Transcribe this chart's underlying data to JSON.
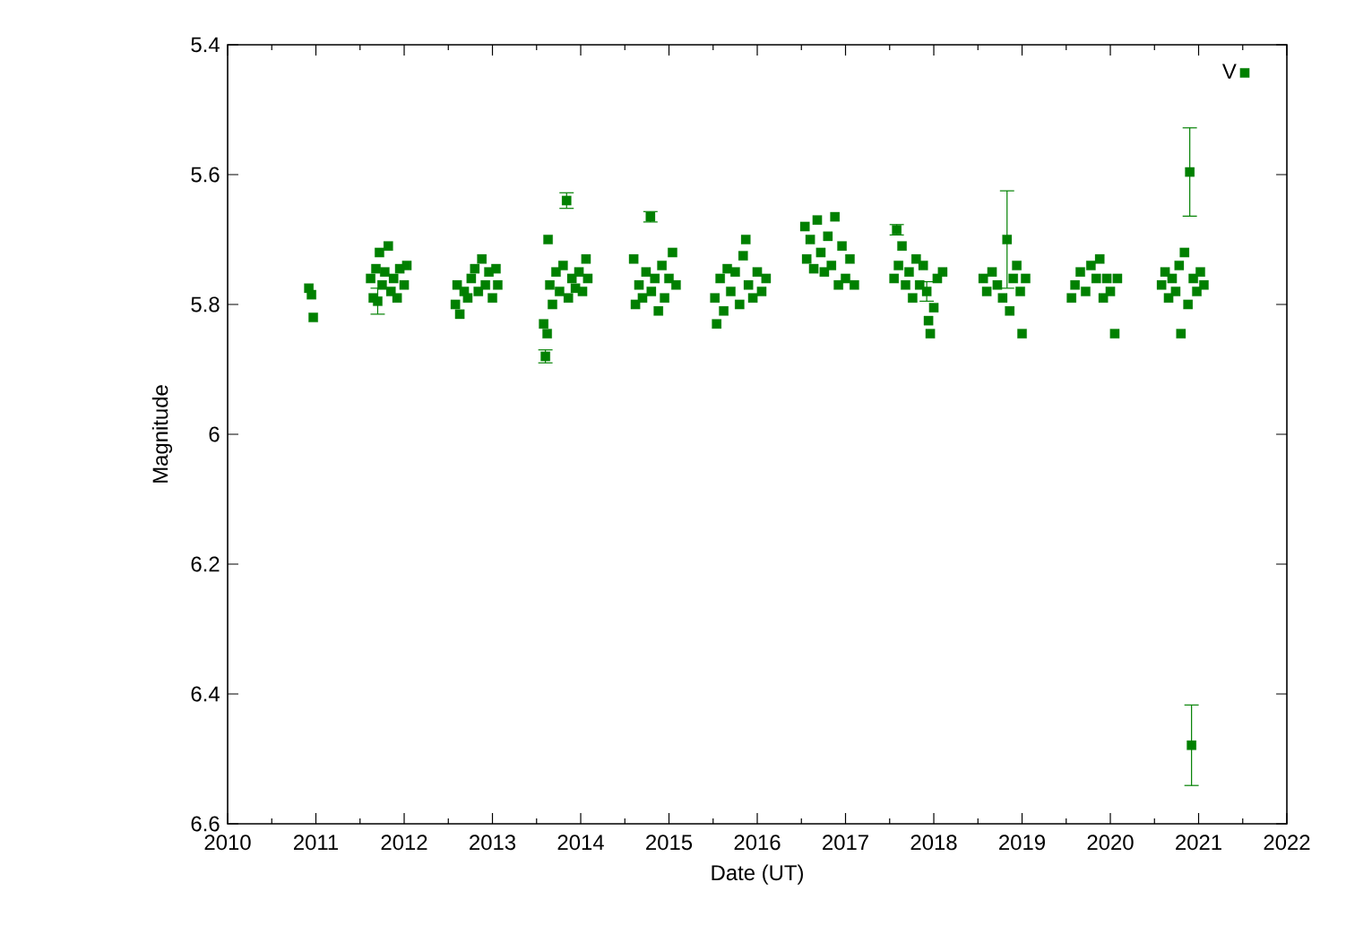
{
  "chart_data": {
    "type": "scatter",
    "xlabel": "Date (UT)",
    "ylabel": "Magnitude",
    "xlim": [
      2010,
      2022
    ],
    "xticks": [
      2010,
      2011,
      2012,
      2013,
      2014,
      2015,
      2016,
      2017,
      2018,
      2019,
      2020,
      2021,
      2022
    ],
    "ylim": [
      6.6,
      5.4
    ],
    "yticks": [
      5.4,
      5.6,
      5.8,
      6,
      6.2,
      6.4,
      6.6
    ],
    "legend": "top right",
    "marker": "square",
    "grid": false,
    "series": [
      {
        "name": "V",
        "color": "#008000",
        "x": [
          2010.92,
          2010.95,
          2010.97,
          2011.62,
          2011.65,
          2011.68,
          2011.7,
          2011.72,
          2011.75,
          2011.78,
          2011.82,
          2011.85,
          2011.88,
          2011.92,
          2011.95,
          2012.0,
          2012.03,
          2012.58,
          2012.6,
          2012.63,
          2012.68,
          2012.72,
          2012.76,
          2012.8,
          2012.84,
          2012.88,
          2012.92,
          2012.96,
          2013.0,
          2013.04,
          2013.06,
          2013.58,
          2013.6,
          2013.62,
          2013.63,
          2013.65,
          2013.68,
          2013.72,
          2013.76,
          2013.8,
          2013.84,
          2013.86,
          2013.9,
          2013.94,
          2013.98,
          2014.02,
          2014.06,
          2014.08,
          2014.6,
          2014.62,
          2014.66,
          2014.7,
          2014.74,
          2014.79,
          2014.8,
          2014.84,
          2014.88,
          2014.92,
          2014.95,
          2015.0,
          2015.04,
          2015.08,
          2015.52,
          2015.54,
          2015.58,
          2015.62,
          2015.66,
          2015.7,
          2015.75,
          2015.8,
          2015.84,
          2015.87,
          2015.9,
          2015.95,
          2016.0,
          2016.05,
          2016.1,
          2016.54,
          2016.56,
          2016.6,
          2016.64,
          2016.68,
          2016.72,
          2016.76,
          2016.8,
          2016.84,
          2016.88,
          2016.92,
          2016.96,
          2017.0,
          2017.05,
          2017.1,
          2017.55,
          2017.58,
          2017.6,
          2017.64,
          2017.68,
          2017.72,
          2017.76,
          2017.8,
          2017.84,
          2017.88,
          2017.92,
          2017.94,
          2017.96,
          2018.0,
          2018.04,
          2018.1,
          2018.56,
          2018.6,
          2018.66,
          2018.72,
          2018.78,
          2018.83,
          2018.86,
          2018.9,
          2018.94,
          2018.98,
          2019.0,
          2019.04,
          2019.56,
          2019.6,
          2019.66,
          2019.72,
          2019.78,
          2019.84,
          2019.88,
          2019.92,
          2019.96,
          2020.0,
          2020.05,
          2020.08,
          2020.58,
          2020.62,
          2020.66,
          2020.7,
          2020.74,
          2020.78,
          2020.8,
          2020.84,
          2020.88,
          2020.9,
          2020.92,
          2020.94,
          2020.98,
          2021.02,
          2021.06
        ],
        "values": [
          5.775,
          5.785,
          5.82,
          5.76,
          5.79,
          5.745,
          5.795,
          5.72,
          5.77,
          5.75,
          5.71,
          5.78,
          5.76,
          5.79,
          5.745,
          5.77,
          5.74,
          5.8,
          5.77,
          5.815,
          5.78,
          5.79,
          5.76,
          5.745,
          5.78,
          5.73,
          5.77,
          5.75,
          5.79,
          5.745,
          5.77,
          5.83,
          5.88,
          5.845,
          5.7,
          5.77,
          5.8,
          5.75,
          5.78,
          5.74,
          5.64,
          5.79,
          5.76,
          5.775,
          5.75,
          5.78,
          5.73,
          5.76,
          5.73,
          5.8,
          5.77,
          5.79,
          5.75,
          5.665,
          5.78,
          5.76,
          5.81,
          5.74,
          5.79,
          5.76,
          5.72,
          5.77,
          5.79,
          5.83,
          5.76,
          5.81,
          5.745,
          5.78,
          5.75,
          5.8,
          5.725,
          5.7,
          5.77,
          5.79,
          5.75,
          5.78,
          5.76,
          5.68,
          5.73,
          5.7,
          5.745,
          5.67,
          5.72,
          5.75,
          5.695,
          5.74,
          5.665,
          5.77,
          5.71,
          5.76,
          5.73,
          5.77,
          5.76,
          5.685,
          5.74,
          5.71,
          5.77,
          5.75,
          5.79,
          5.73,
          5.77,
          5.74,
          5.78,
          5.825,
          5.845,
          5.805,
          5.76,
          5.75,
          5.76,
          5.78,
          5.75,
          5.77,
          5.79,
          5.7,
          5.81,
          5.76,
          5.74,
          5.78,
          5.845,
          5.76,
          5.79,
          5.77,
          5.75,
          5.78,
          5.74,
          5.76,
          5.73,
          5.79,
          5.76,
          5.78,
          5.845,
          5.76,
          5.77,
          5.75,
          5.79,
          5.76,
          5.78,
          5.74,
          5.845,
          5.72,
          5.8,
          5.596,
          6.479,
          5.76,
          5.78,
          5.75,
          5.77
        ],
        "errors": [
          null,
          null,
          null,
          null,
          null,
          null,
          0.02,
          null,
          null,
          null,
          null,
          null,
          null,
          null,
          null,
          null,
          null,
          null,
          null,
          null,
          null,
          null,
          null,
          null,
          null,
          null,
          null,
          null,
          null,
          null,
          null,
          null,
          0.01,
          null,
          null,
          null,
          null,
          null,
          null,
          null,
          0.012,
          null,
          null,
          null,
          null,
          null,
          null,
          null,
          null,
          null,
          null,
          null,
          null,
          0.008,
          null,
          null,
          null,
          null,
          null,
          null,
          null,
          null,
          null,
          null,
          null,
          null,
          null,
          null,
          null,
          null,
          null,
          null,
          null,
          null,
          null,
          null,
          null,
          null,
          null,
          null,
          null,
          null,
          null,
          null,
          null,
          null,
          null,
          null,
          null,
          null,
          null,
          null,
          null,
          0.008,
          null,
          null,
          null,
          null,
          null,
          null,
          null,
          null,
          0.015,
          null,
          null,
          null,
          null,
          null,
          null,
          null,
          null,
          null,
          null,
          0.075,
          null,
          null,
          null,
          null,
          null,
          null,
          null,
          null,
          null,
          null,
          null,
          null,
          null,
          null,
          null,
          null,
          null,
          null,
          null,
          null,
          null,
          null,
          null,
          null,
          null,
          null,
          null,
          0.068,
          0.062,
          null,
          null,
          null,
          null
        ]
      }
    ]
  }
}
